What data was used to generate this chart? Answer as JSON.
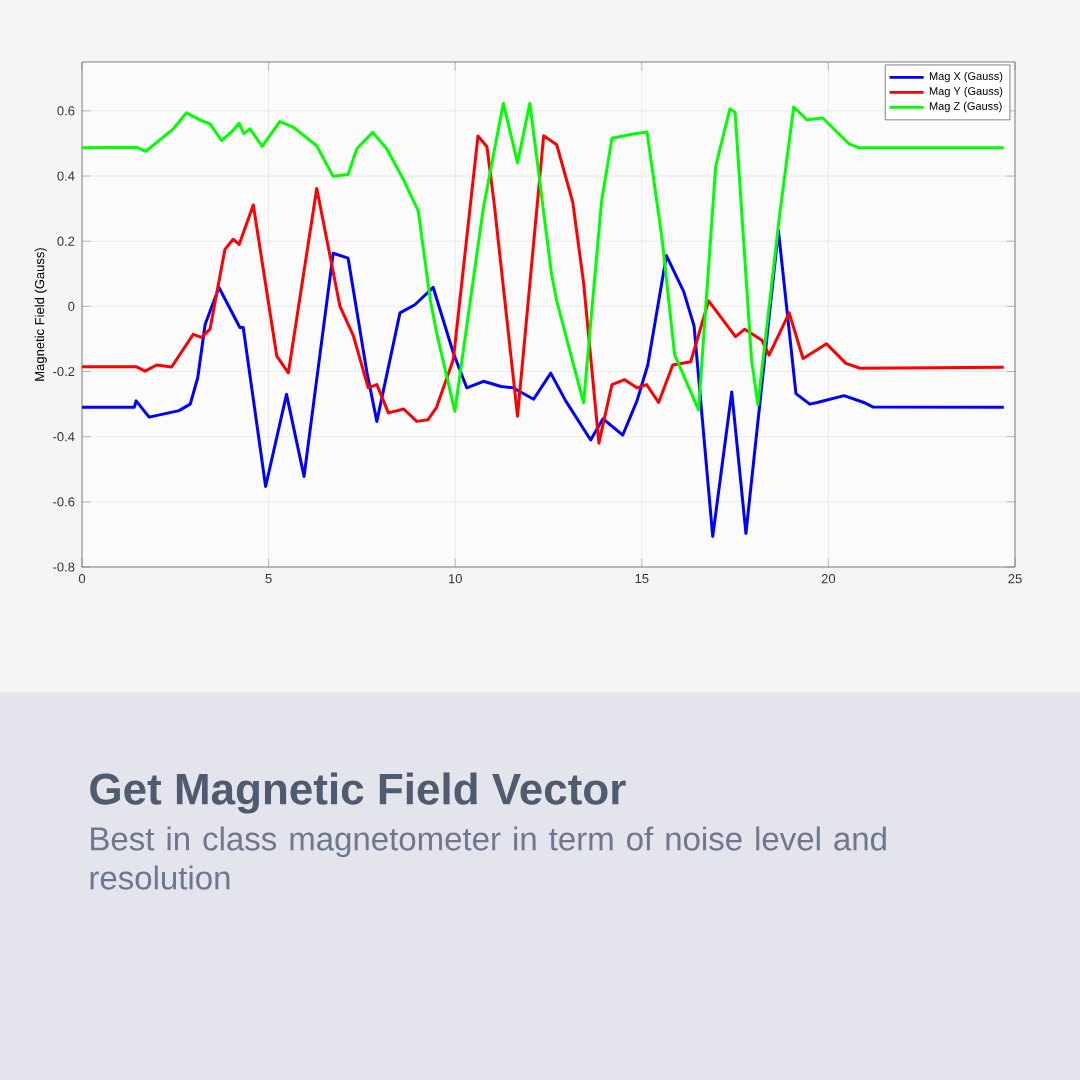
{
  "chart_data": {
    "type": "line",
    "title": "Get Magnetic Field Vector",
    "subtitle": "Best in class magnetometer in term of noise level and resolution",
    "ylabel": "Magnetic Field (Gauss)",
    "xlim": [
      0,
      25
    ],
    "ylim": [
      -0.8,
      0.75
    ],
    "xticks": [
      0,
      5,
      10,
      15,
      20,
      25
    ],
    "yticks": [
      -0.8,
      -0.6,
      -0.4,
      -0.2,
      0,
      0.2,
      0.4,
      0.6
    ],
    "grid": true,
    "legend": "top right",
    "marker": "none",
    "line_style": "solid",
    "series": [
      {
        "name": "Mag X (Gauss)",
        "color": "#0000ff",
        "x": [
          0,
          1.4,
          1.45,
          1.8,
          2.2,
          2.6,
          2.9,
          3.1,
          3.3,
          3.67,
          4.23,
          4.32,
          4.92,
          5.48,
          5.95,
          6.73,
          7.13,
          7.63,
          7.9,
          8.52,
          8.92,
          9.41,
          9.95,
          10.31,
          10.76,
          11.23,
          11.55,
          12.1,
          12.56,
          12.96,
          13.63,
          13.96,
          14.49,
          14.87,
          15.16,
          15.66,
          16.12,
          16.4,
          16.9,
          17.41,
          17.79,
          18.66,
          19.13,
          19.5,
          19.7,
          20.42,
          20.95,
          21.2,
          24.7
        ],
        "values": [
          -0.31,
          -0.31,
          -0.29,
          -0.34,
          -0.33,
          -0.32,
          -0.3,
          -0.22,
          -0.055,
          0.058,
          -0.065,
          -0.065,
          -0.553,
          -0.27,
          -0.522,
          0.163,
          0.148,
          -0.2,
          -0.353,
          -0.02,
          0.005,
          0.058,
          -0.143,
          -0.25,
          -0.23,
          -0.246,
          -0.25,
          -0.285,
          -0.205,
          -0.29,
          -0.41,
          -0.345,
          -0.395,
          -0.29,
          -0.18,
          0.156,
          0.046,
          -0.06,
          -0.706,
          -0.263,
          -0.697,
          0.233,
          -0.268,
          -0.3,
          -0.295,
          -0.274,
          -0.295,
          -0.309,
          -0.31
        ]
      },
      {
        "name": "Mag Y (Gauss)",
        "color": "#ff0000",
        "x": [
          0,
          1.45,
          1.69,
          2.0,
          2.4,
          2.98,
          3.2,
          3.43,
          3.83,
          4.05,
          4.21,
          4.59,
          5.22,
          5.53,
          6.29,
          6.91,
          7.27,
          7.67,
          7.9,
          8.21,
          8.62,
          8.97,
          9.27,
          9.5,
          9.95,
          10.61,
          10.85,
          11.04,
          11.67,
          12.37,
          12.72,
          13.15,
          13.44,
          13.85,
          14.2,
          14.54,
          14.87,
          15.13,
          15.45,
          15.83,
          16.31,
          16.79,
          17.51,
          17.76,
          18.22,
          18.41,
          18.95,
          19.32,
          19.6,
          19.95,
          20.47,
          20.85,
          24.7
        ],
        "values": [
          -0.185,
          -0.185,
          -0.199,
          -0.18,
          -0.186,
          -0.086,
          -0.095,
          -0.07,
          0.175,
          0.206,
          0.19,
          0.311,
          -0.153,
          -0.204,
          0.362,
          0.001,
          -0.09,
          -0.25,
          -0.24,
          -0.327,
          -0.315,
          -0.353,
          -0.348,
          -0.31,
          -0.163,
          0.523,
          0.49,
          0.32,
          -0.337,
          0.524,
          0.496,
          0.32,
          0.072,
          -0.42,
          -0.24,
          -0.225,
          -0.25,
          -0.24,
          -0.295,
          -0.18,
          -0.17,
          0.017,
          -0.093,
          -0.07,
          -0.104,
          -0.15,
          -0.02,
          -0.16,
          -0.14,
          -0.115,
          -0.175,
          -0.19,
          -0.187
        ]
      },
      {
        "name": "Mag Z (Gauss)",
        "color": "#00ff00",
        "x": [
          0,
          1.47,
          1.71,
          2.08,
          2.45,
          2.8,
          3.2,
          3.43,
          3.74,
          4.05,
          4.21,
          4.34,
          4.5,
          4.83,
          5.3,
          5.66,
          6.29,
          6.73,
          7.13,
          7.36,
          7.79,
          8.17,
          8.61,
          9.01,
          9.33,
          9.5,
          9.99,
          10.75,
          11.0,
          11.29,
          11.67,
          12.0,
          12.58,
          12.72,
          13.44,
          13.92,
          14.2,
          14.77,
          15.14,
          15.54,
          15.88,
          16.52,
          16.98,
          17.36,
          17.5,
          17.94,
          18.11,
          18.7,
          19.07,
          19.42,
          19.85,
          20.23,
          20.55,
          20.81,
          24.7
        ],
        "values": [
          0.487,
          0.488,
          0.476,
          0.51,
          0.545,
          0.594,
          0.57,
          0.56,
          0.509,
          0.54,
          0.562,
          0.53,
          0.545,
          0.491,
          0.567,
          0.55,
          0.493,
          0.399,
          0.405,
          0.483,
          0.534,
          0.483,
          0.39,
          0.293,
          0.022,
          -0.08,
          -0.322,
          0.298,
          0.45,
          0.623,
          0.441,
          0.623,
          0.1,
          0.017,
          -0.296,
          0.32,
          0.516,
          0.529,
          0.535,
          0.21,
          -0.148,
          -0.318,
          0.43,
          0.606,
          0.595,
          -0.163,
          -0.302,
          0.287,
          0.612,
          0.573,
          0.578,
          0.535,
          0.499,
          0.487,
          0.487
        ]
      }
    ]
  }
}
